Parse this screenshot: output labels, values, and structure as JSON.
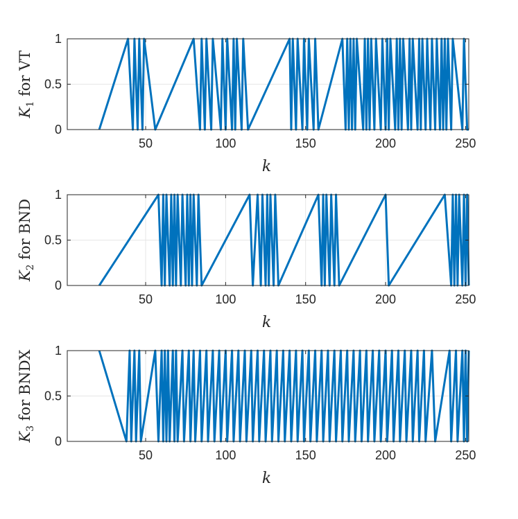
{
  "chart_data": [
    {
      "type": "line",
      "ylabel": {
        "var": "K",
        "sub": "1",
        "text": "for VT"
      },
      "xlabel": "k",
      "xlim": [
        1,
        252
      ],
      "ylim": [
        0,
        1
      ],
      "xticks": [
        50,
        100,
        150,
        200,
        250
      ],
      "yticks": [
        0,
        0.5,
        1
      ],
      "ytick_labels": [
        "0",
        "0.5",
        "1"
      ],
      "grid": true,
      "color": "#0072BD",
      "x_start": 21,
      "x_end": 252,
      "initial_value": 0,
      "transitions": [
        39,
        42,
        43,
        45,
        46,
        48,
        49,
        56,
        80,
        84,
        85,
        87,
        88,
        91,
        92,
        97,
        98,
        100,
        101,
        104,
        105,
        106,
        107,
        110,
        111,
        114,
        140,
        141,
        142,
        144,
        145,
        148,
        149,
        151,
        152,
        155,
        156,
        158,
        173,
        175,
        176,
        177,
        178,
        179,
        180,
        181,
        182,
        186,
        187,
        188,
        189,
        190,
        191,
        193,
        194,
        197,
        198,
        200,
        201,
        202,
        203,
        206,
        207,
        208,
        209,
        210,
        211,
        214,
        215,
        216,
        217,
        220,
        221,
        222,
        223,
        225,
        226,
        228,
        229,
        231,
        232,
        234,
        235,
        236,
        237,
        238,
        239,
        241,
        242,
        248,
        249,
        251
      ]
    },
    {
      "type": "line",
      "ylabel": {
        "var": "K",
        "sub": "2",
        "text": "for BND"
      },
      "xlabel": "k",
      "xlim": [
        1,
        252
      ],
      "ylim": [
        0,
        1
      ],
      "xticks": [
        50,
        100,
        150,
        200,
        250
      ],
      "yticks": [
        0,
        0.5,
        1
      ],
      "ytick_labels": [
        "0",
        "0.5",
        "1"
      ],
      "grid": true,
      "color": "#0072BD",
      "x_start": 21,
      "x_end": 252,
      "initial_value": 0,
      "transitions": [
        58,
        60,
        61,
        62,
        63,
        65,
        66,
        67,
        68,
        69,
        70,
        72,
        73,
        75,
        76,
        77,
        78,
        79,
        80,
        82,
        83,
        85,
        115,
        117,
        120,
        122,
        123,
        125,
        126,
        127,
        128,
        130,
        131,
        133,
        158,
        160,
        161,
        162,
        163,
        165,
        166,
        168,
        169,
        171,
        200,
        202,
        237,
        241,
        242,
        243,
        244,
        245,
        246,
        248,
        249,
        250,
        251,
        252
      ]
    },
    {
      "type": "line",
      "ylabel": {
        "var": "K",
        "sub": "3",
        "text": "for BNDX"
      },
      "xlabel": "k",
      "xlim": [
        1,
        252
      ],
      "ylim": [
        0,
        1
      ],
      "xticks": [
        50,
        100,
        150,
        200,
        250
      ],
      "yticks": [
        0,
        0.5,
        1
      ],
      "ytick_labels": [
        "0",
        "0.5",
        "1"
      ],
      "grid": true,
      "color": "#0072BD",
      "x_start": 21,
      "x_end": 252,
      "initial_value": 1,
      "transitions": [
        38,
        40,
        41,
        43,
        44,
        46,
        47,
        56,
        58,
        60,
        61,
        62,
        63,
        64,
        65,
        67,
        68,
        69,
        70,
        73,
        74,
        77,
        78,
        80,
        81,
        84,
        85,
        88,
        89,
        92,
        93,
        96,
        97,
        100,
        101,
        104,
        105,
        108,
        109,
        112,
        113,
        116,
        117,
        120,
        121,
        124,
        125,
        128,
        129,
        132,
        133,
        136,
        137,
        140,
        141,
        144,
        145,
        148,
        149,
        152,
        153,
        156,
        157,
        160,
        161,
        164,
        165,
        168,
        169,
        172,
        173,
        176,
        177,
        180,
        181,
        184,
        185,
        188,
        189,
        192,
        193,
        196,
        197,
        200,
        201,
        204,
        205,
        208,
        209,
        212,
        213,
        216,
        217,
        220,
        221,
        224,
        225,
        229,
        231,
        240,
        241,
        244,
        245,
        248,
        249,
        250,
        251,
        252
      ]
    }
  ]
}
